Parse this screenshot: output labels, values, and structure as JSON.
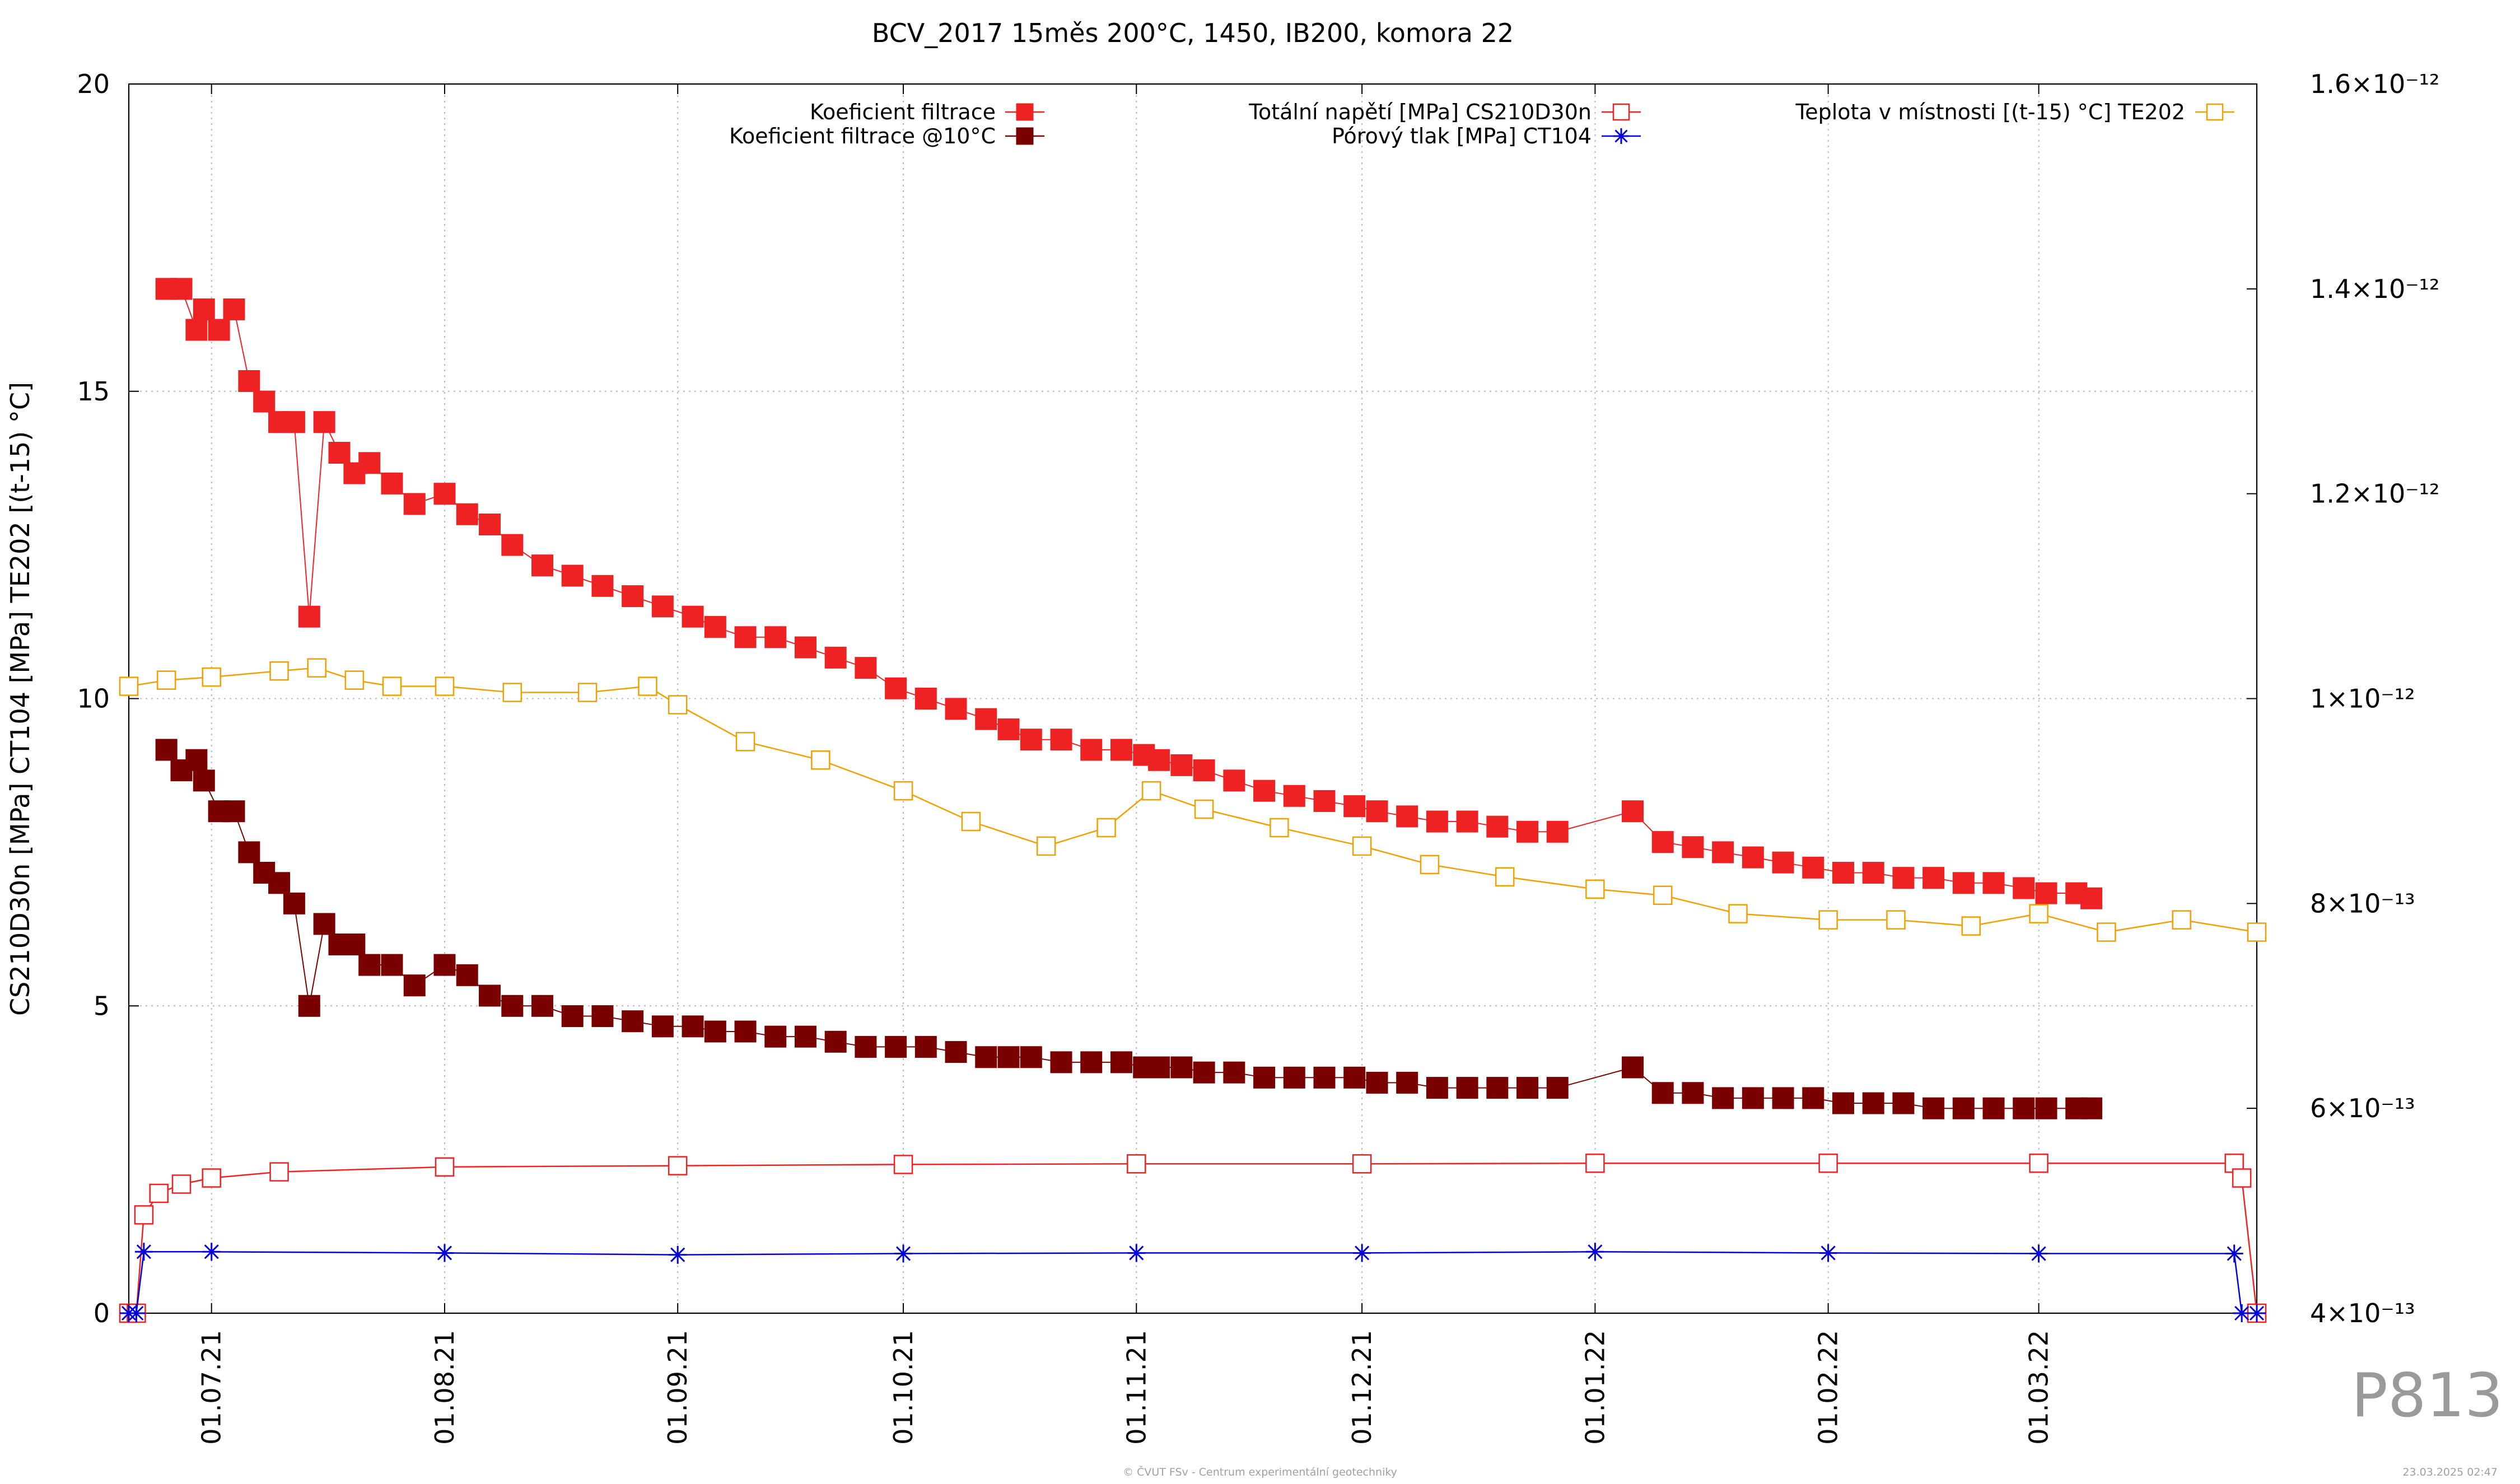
{
  "watermark": "P813",
  "footer": "© ČVUT FSv - Centrum experimentální geotechniky",
  "timestamp": "23.03.2025 02:47",
  "chart_data": {
    "type": "line",
    "title": "BCV_2017 15měs 200°C, 1450, IB200, komora 22",
    "ylabel": "CS210D30n [MPa] CT104 [MPa] TE202 [(t-15) °C]",
    "y2label": "",
    "xlabel": "",
    "ylim": [
      0,
      20
    ],
    "y2lim": [
      4e-13,
      1.6e-12
    ],
    "xlim": [
      "2021-06-20",
      "2022-03-30"
    ],
    "grid": true,
    "legend_position": "top",
    "x_ticks": [
      "01.07.21",
      "01.08.21",
      "01.09.21",
      "01.10.21",
      "01.11.21",
      "01.12.21",
      "01.01.22",
      "01.02.22",
      "01.03.22"
    ],
    "y_ticks": [
      "0",
      "5",
      "10",
      "15",
      "20"
    ],
    "y2_ticks": [
      "4×10⁻¹³",
      "6×10⁻¹³",
      "8×10⁻¹³",
      "1×10⁻¹²",
      "1.2×10⁻¹²",
      "1.4×10⁻¹²",
      "1.6×10⁻¹²"
    ],
    "series": [
      {
        "name": "Koeficient filtrace",
        "axis": "y2",
        "color": "#ee2222",
        "marker": "filled-square",
        "x": [
          "2021-06-25",
          "2021-06-27",
          "2021-06-29",
          "2021-06-30",
          "2021-07-02",
          "2021-07-04",
          "2021-07-06",
          "2021-07-08",
          "2021-07-10",
          "2021-07-12",
          "2021-07-14",
          "2021-07-16",
          "2021-07-18",
          "2021-07-20",
          "2021-07-22",
          "2021-07-25",
          "2021-07-28",
          "2021-08-01",
          "2021-08-04",
          "2021-08-07",
          "2021-08-10",
          "2021-08-14",
          "2021-08-18",
          "2021-08-22",
          "2021-08-26",
          "2021-08-30",
          "2021-09-03",
          "2021-09-06",
          "2021-09-10",
          "2021-09-14",
          "2021-09-18",
          "2021-09-22",
          "2021-09-26",
          "2021-09-30",
          "2021-10-04",
          "2021-10-08",
          "2021-10-12",
          "2021-10-15",
          "2021-10-18",
          "2021-10-22",
          "2021-10-26",
          "2021-10-30",
          "2021-11-02",
          "2021-11-04",
          "2021-11-07",
          "2021-11-10",
          "2021-11-14",
          "2021-11-18",
          "2021-11-22",
          "2021-11-26",
          "2021-11-30",
          "2021-12-03",
          "2021-12-07",
          "2021-12-11",
          "2021-12-15",
          "2021-12-19",
          "2021-12-23",
          "2021-12-27",
          "2022-01-06",
          "2022-01-10",
          "2022-01-14",
          "2022-01-18",
          "2022-01-22",
          "2022-01-26",
          "2022-01-30",
          "2022-02-03",
          "2022-02-07",
          "2022-02-11",
          "2022-02-15",
          "2022-02-19",
          "2022-02-23",
          "2022-02-27",
          "2022-03-02",
          "2022-03-06",
          "2022-03-08"
        ],
        "values": [
          1.4e-12,
          1.4e-12,
          1.36e-12,
          1.38e-12,
          1.36e-12,
          1.38e-12,
          1.31e-12,
          1.29e-12,
          1.27e-12,
          1.27e-12,
          1.08e-12,
          1.27e-12,
          1.24e-12,
          1.22e-12,
          1.23e-12,
          1.21e-12,
          1.19e-12,
          1.2e-12,
          1.18e-12,
          1.17e-12,
          1.15e-12,
          1.13e-12,
          1.12e-12,
          1.11e-12,
          1.1e-12,
          1.09e-12,
          1.08e-12,
          1.07e-12,
          1.06e-12,
          1.06e-12,
          1.05e-12,
          1.04e-12,
          1.03e-12,
          1.01e-12,
          1e-12,
          9.9e-13,
          9.8e-13,
          9.7e-13,
          9.6e-13,
          9.6e-13,
          9.5e-13,
          9.5e-13,
          9.45e-13,
          9.4e-13,
          9.35e-13,
          9.3e-13,
          9.2e-13,
          9.1e-13,
          9.05e-13,
          9e-13,
          8.95e-13,
          8.9e-13,
          8.85e-13,
          8.8e-13,
          8.8e-13,
          8.75e-13,
          8.7e-13,
          8.7e-13,
          8.9e-13,
          8.6e-13,
          8.55e-13,
          8.5e-13,
          8.45e-13,
          8.4e-13,
          8.35e-13,
          8.3e-13,
          8.3e-13,
          8.25e-13,
          8.25e-13,
          8.2e-13,
          8.2e-13,
          8.15e-13,
          8.1e-13,
          8.1e-13,
          8.05e-13
        ]
      },
      {
        "name": "Koeficient filtrace @10°C",
        "axis": "y2",
        "color": "#7a0000",
        "marker": "filled-square",
        "x": [
          "2021-06-25",
          "2021-06-27",
          "2021-06-29",
          "2021-06-30",
          "2021-07-02",
          "2021-07-04",
          "2021-07-06",
          "2021-07-08",
          "2021-07-10",
          "2021-07-12",
          "2021-07-14",
          "2021-07-16",
          "2021-07-18",
          "2021-07-20",
          "2021-07-22",
          "2021-07-25",
          "2021-07-28",
          "2021-08-01",
          "2021-08-04",
          "2021-08-07",
          "2021-08-10",
          "2021-08-14",
          "2021-08-18",
          "2021-08-22",
          "2021-08-26",
          "2021-08-30",
          "2021-09-03",
          "2021-09-06",
          "2021-09-10",
          "2021-09-14",
          "2021-09-18",
          "2021-09-22",
          "2021-09-26",
          "2021-09-30",
          "2021-10-04",
          "2021-10-08",
          "2021-10-12",
          "2021-10-15",
          "2021-10-18",
          "2021-10-22",
          "2021-10-26",
          "2021-10-30",
          "2021-11-02",
          "2021-11-04",
          "2021-11-07",
          "2021-11-10",
          "2021-11-14",
          "2021-11-18",
          "2021-11-22",
          "2021-11-26",
          "2021-11-30",
          "2021-12-03",
          "2021-12-07",
          "2021-12-11",
          "2021-12-15",
          "2021-12-19",
          "2021-12-23",
          "2021-12-27",
          "2022-01-06",
          "2022-01-10",
          "2022-01-14",
          "2022-01-18",
          "2022-01-22",
          "2022-01-26",
          "2022-01-30",
          "2022-02-03",
          "2022-02-07",
          "2022-02-11",
          "2022-02-15",
          "2022-02-19",
          "2022-02-23",
          "2022-02-27",
          "2022-03-02",
          "2022-03-06",
          "2022-03-08"
        ],
        "values": [
          9.5e-13,
          9.3e-13,
          9.4e-13,
          9.2e-13,
          8.9e-13,
          8.9e-13,
          8.5e-13,
          8.3e-13,
          8.2e-13,
          8e-13,
          7e-13,
          7.8e-13,
          7.6e-13,
          7.6e-13,
          7.4e-13,
          7.4e-13,
          7.2e-13,
          7.4e-13,
          7.3e-13,
          7.1e-13,
          7e-13,
          7e-13,
          6.9e-13,
          6.9e-13,
          6.85e-13,
          6.8e-13,
          6.8e-13,
          6.75e-13,
          6.75e-13,
          6.7e-13,
          6.7e-13,
          6.65e-13,
          6.6e-13,
          6.6e-13,
          6.6e-13,
          6.55e-13,
          6.5e-13,
          6.5e-13,
          6.5e-13,
          6.45e-13,
          6.45e-13,
          6.45e-13,
          6.4e-13,
          6.4e-13,
          6.4e-13,
          6.35e-13,
          6.35e-13,
          6.3e-13,
          6.3e-13,
          6.3e-13,
          6.3e-13,
          6.25e-13,
          6.25e-13,
          6.2e-13,
          6.2e-13,
          6.2e-13,
          6.2e-13,
          6.2e-13,
          6.4e-13,
          6.15e-13,
          6.15e-13,
          6.1e-13,
          6.1e-13,
          6.1e-13,
          6.1e-13,
          6.05e-13,
          6.05e-13,
          6.05e-13,
          6e-13,
          6e-13,
          6e-13,
          6e-13,
          6e-13,
          6e-13,
          6e-13
        ]
      },
      {
        "name": "Totální napětí [MPa] CS210D30n",
        "axis": "y",
        "color": "#ee2222",
        "marker": "open-square",
        "x": [
          "2021-06-20",
          "2021-06-21",
          "2021-06-22",
          "2021-06-24",
          "2021-06-27",
          "2021-07-01",
          "2021-07-10",
          "2021-08-01",
          "2021-09-01",
          "2021-10-01",
          "2021-11-01",
          "2021-12-01",
          "2022-01-01",
          "2022-02-01",
          "2022-03-01",
          "2022-03-27",
          "2022-03-28",
          "2022-03-30"
        ],
        "values": [
          0,
          0,
          1.6,
          1.95,
          2.1,
          2.2,
          2.3,
          2.38,
          2.4,
          2.42,
          2.43,
          2.43,
          2.44,
          2.44,
          2.44,
          2.44,
          2.2,
          0
        ]
      },
      {
        "name": "Pórový tlak [MPa] CT104",
        "axis": "y",
        "color": "#0000dd",
        "marker": "star",
        "x": [
          "2021-06-20",
          "2021-06-21",
          "2021-06-22",
          "2021-07-01",
          "2021-08-01",
          "2021-09-01",
          "2021-10-01",
          "2021-11-01",
          "2021-12-01",
          "2022-01-01",
          "2022-02-01",
          "2022-03-01",
          "2022-03-27",
          "2022-03-28",
          "2022-03-30"
        ],
        "values": [
          0,
          0,
          1.0,
          1.0,
          0.98,
          0.95,
          0.97,
          0.98,
          0.98,
          1.0,
          0.98,
          0.97,
          0.97,
          0,
          0
        ]
      },
      {
        "name": "Teplota v místnosti [(t-15) °C] TE202",
        "axis": "y",
        "color": "#f0a000",
        "marker": "open-square",
        "x": [
          "2021-06-20",
          "2021-06-25",
          "2021-07-01",
          "2021-07-10",
          "2021-07-15",
          "2021-07-20",
          "2021-07-25",
          "2021-08-01",
          "2021-08-10",
          "2021-08-20",
          "2021-08-28",
          "2021-09-01",
          "2021-09-10",
          "2021-09-20",
          "2021-10-01",
          "2021-10-10",
          "2021-10-20",
          "2021-10-28",
          "2021-11-03",
          "2021-11-10",
          "2021-11-20",
          "2021-12-01",
          "2021-12-10",
          "2021-12-20",
          "2022-01-01",
          "2022-01-10",
          "2022-01-20",
          "2022-02-01",
          "2022-02-10",
          "2022-02-20",
          "2022-03-01",
          "2022-03-10",
          "2022-03-20",
          "2022-03-30"
        ],
        "values": [
          10.2,
          10.3,
          10.35,
          10.45,
          10.5,
          10.3,
          10.2,
          10.2,
          10.1,
          10.1,
          10.2,
          9.9,
          9.3,
          9.0,
          8.5,
          8.0,
          7.6,
          7.9,
          8.5,
          8.2,
          7.9,
          7.6,
          7.3,
          7.1,
          6.9,
          6.8,
          6.5,
          6.4,
          6.4,
          6.3,
          6.5,
          6.2,
          6.4,
          6.2
        ]
      }
    ]
  }
}
